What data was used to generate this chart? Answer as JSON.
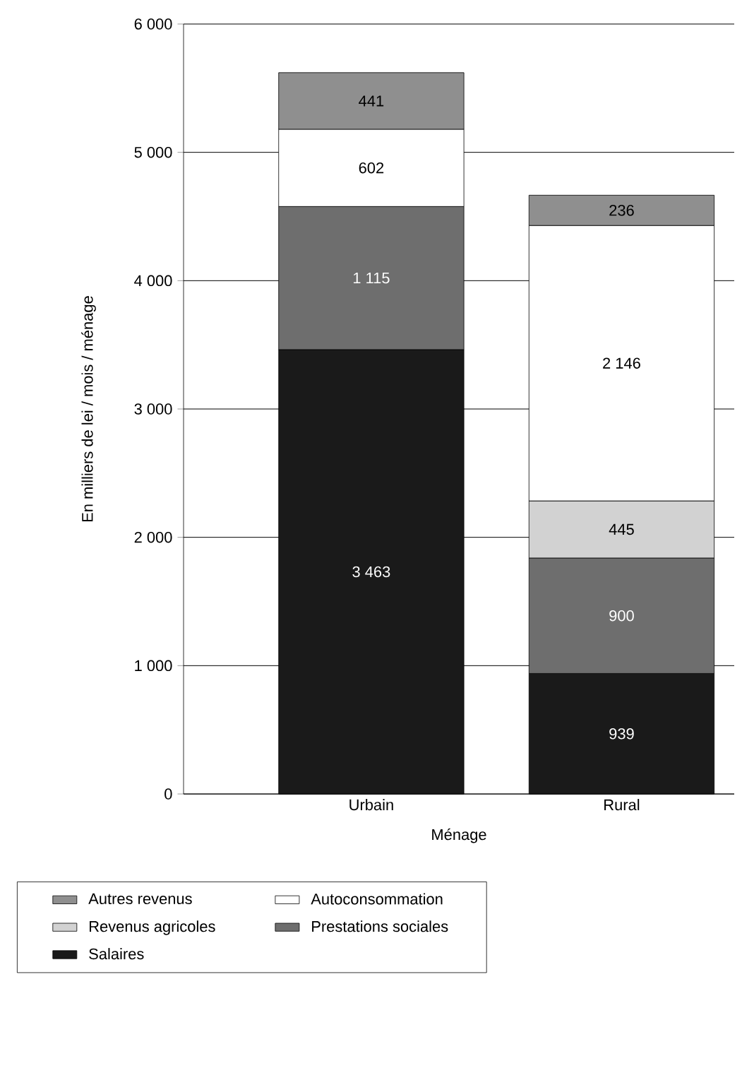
{
  "chart_data": {
    "type": "bar",
    "stacked": true,
    "xlabel": "Ménage",
    "ylabel": "En milliers de lei / mois / ménage",
    "categories": [
      "Urbain",
      "Rural"
    ],
    "series": [
      {
        "name": "Salaires",
        "color": "#1a1a1a",
        "values": [
          3463,
          939
        ],
        "value_labels": [
          "3 463",
          "939"
        ]
      },
      {
        "name": "Prestations sociales",
        "color": "#6e6e6e",
        "values": [
          1115,
          900
        ],
        "value_labels": [
          "1 115",
          "900"
        ]
      },
      {
        "name": "Revenus agricoles",
        "color": "#d2d2d2",
        "values": [
          null,
          445
        ],
        "value_labels": [
          null,
          "445"
        ]
      },
      {
        "name": "Autoconsommation",
        "color": "#ffffff",
        "values": [
          602,
          2146
        ],
        "value_labels": [
          "602",
          "2 146"
        ]
      },
      {
        "name": "Autres revenus",
        "color": "#8f8f8f",
        "values": [
          441,
          236
        ],
        "value_labels": [
          "441",
          "236"
        ]
      }
    ],
    "ylim": [
      0,
      6000
    ],
    "yticks": [
      {
        "value": 0,
        "label": "0"
      },
      {
        "value": 1000,
        "label": "1 000"
      },
      {
        "value": 2000,
        "label": "2 000"
      },
      {
        "value": 3000,
        "label": "3 000"
      },
      {
        "value": 4000,
        "label": "4 000"
      },
      {
        "value": 5000,
        "label": "5 000"
      },
      {
        "value": 6000,
        "label": "6 000"
      }
    ],
    "grid": "y",
    "legend": "bottom"
  }
}
